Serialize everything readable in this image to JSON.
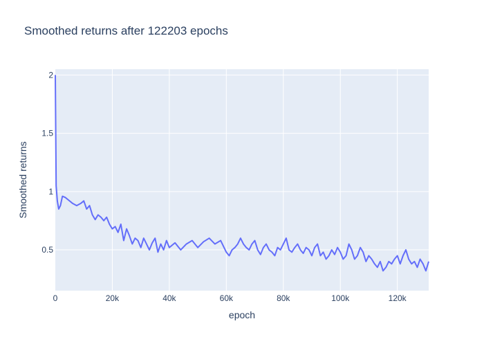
{
  "chart_data": {
    "type": "line",
    "title": "Smoothed returns after 122203 epochs",
    "xlabel": "epoch",
    "ylabel": "Smoothed returns",
    "xlim": [
      0,
      131000
    ],
    "ylim": [
      0.15,
      2.05
    ],
    "grid": true,
    "x_ticks": [
      {
        "value": 0,
        "label": "0"
      },
      {
        "value": 20000,
        "label": "20k"
      },
      {
        "value": 40000,
        "label": "40k"
      },
      {
        "value": 60000,
        "label": "60k"
      },
      {
        "value": 80000,
        "label": "80k"
      },
      {
        "value": 100000,
        "label": "100k"
      },
      {
        "value": 120000,
        "label": "120k"
      }
    ],
    "y_ticks": [
      {
        "value": 0.5,
        "label": "0.5"
      },
      {
        "value": 1,
        "label": "1"
      },
      {
        "value": 1.5,
        "label": "1.5"
      },
      {
        "value": 2,
        "label": "2"
      }
    ],
    "colors": {
      "line": "#636efa",
      "plot_bg": "#e5ecf6",
      "grid": "#ffffff",
      "text": "#2a3f5f"
    },
    "series": [
      {
        "x": [
          0,
          300,
          700,
          1200,
          1800,
          2500,
          3500,
          4500,
          6000,
          7500,
          9000,
          10000,
          11000,
          12000,
          13000,
          14000,
          15000,
          16000,
          17000,
          18000,
          19000,
          20000,
          21000,
          22000,
          23000,
          24000,
          25000,
          26000,
          27000,
          28000,
          29000,
          30000,
          31000,
          32000,
          33000,
          34000,
          35000,
          36000,
          37000,
          38000,
          39000,
          40000,
          42000,
          44000,
          46000,
          48000,
          50000,
          52000,
          54000,
          56000,
          58000,
          60000,
          61000,
          62000,
          63000,
          64000,
          65000,
          66000,
          67000,
          68000,
          69000,
          70000,
          71000,
          72000,
          73000,
          74000,
          75000,
          76000,
          77000,
          78000,
          79000,
          80000,
          81000,
          82000,
          83000,
          84000,
          85000,
          86000,
          87000,
          88000,
          89000,
          90000,
          91000,
          92000,
          93000,
          94000,
          95000,
          96000,
          97000,
          98000,
          99000,
          100000,
          101000,
          102000,
          103000,
          104000,
          105000,
          106000,
          107000,
          108000,
          109000,
          110000,
          111000,
          112000,
          113000,
          114000,
          115000,
          116000,
          117000,
          118000,
          119000,
          120000,
          121000,
          122000,
          123000,
          124000,
          125000,
          126000,
          127000,
          128000,
          129000,
          130000,
          131000
        ],
        "y": [
          2.0,
          1.05,
          0.92,
          0.85,
          0.88,
          0.96,
          0.95,
          0.93,
          0.9,
          0.88,
          0.9,
          0.92,
          0.85,
          0.88,
          0.8,
          0.76,
          0.8,
          0.78,
          0.75,
          0.78,
          0.72,
          0.68,
          0.7,
          0.65,
          0.72,
          0.58,
          0.68,
          0.62,
          0.55,
          0.6,
          0.58,
          0.52,
          0.6,
          0.55,
          0.5,
          0.56,
          0.6,
          0.48,
          0.55,
          0.5,
          0.58,
          0.52,
          0.56,
          0.5,
          0.55,
          0.58,
          0.52,
          0.57,
          0.6,
          0.55,
          0.58,
          0.48,
          0.45,
          0.5,
          0.52,
          0.55,
          0.6,
          0.55,
          0.52,
          0.5,
          0.55,
          0.58,
          0.5,
          0.46,
          0.52,
          0.55,
          0.5,
          0.48,
          0.45,
          0.52,
          0.5,
          0.55,
          0.6,
          0.5,
          0.48,
          0.52,
          0.55,
          0.5,
          0.47,
          0.52,
          0.5,
          0.45,
          0.52,
          0.55,
          0.45,
          0.48,
          0.42,
          0.45,
          0.5,
          0.46,
          0.52,
          0.48,
          0.42,
          0.45,
          0.55,
          0.5,
          0.42,
          0.45,
          0.52,
          0.48,
          0.4,
          0.45,
          0.42,
          0.38,
          0.35,
          0.4,
          0.32,
          0.35,
          0.4,
          0.38,
          0.42,
          0.45,
          0.38,
          0.45,
          0.5,
          0.42,
          0.38,
          0.4,
          0.35,
          0.42,
          0.38,
          0.32,
          0.4
        ]
      }
    ]
  }
}
